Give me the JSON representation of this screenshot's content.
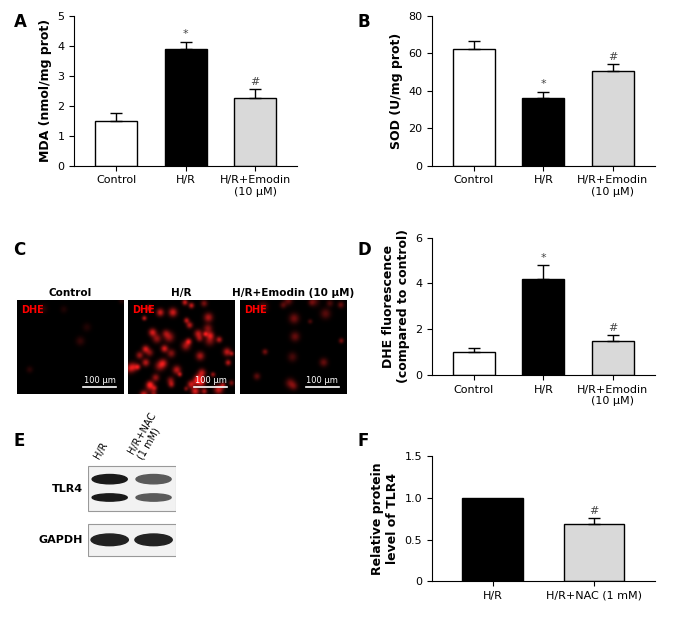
{
  "chart_data": [
    {
      "type": "bar",
      "panel": "A",
      "y_label": "MDA (nmol/mg prot)",
      "categories": [
        "Control",
        "H/R",
        "H/R+Emodin\n(10 μM)"
      ],
      "values": [
        1.48,
        3.88,
        2.26
      ],
      "errors": [
        0.28,
        0.25,
        0.28
      ],
      "colors": [
        "#ffffff",
        "#000000",
        "#d9d9d9"
      ],
      "significance": [
        null,
        "*",
        "#"
      ],
      "ylim": [
        0,
        5
      ],
      "yticks": [
        0,
        1,
        2,
        3,
        4,
        5
      ]
    },
    {
      "type": "bar",
      "panel": "B",
      "y_label": "SOD (U/mg prot)",
      "categories": [
        "Control",
        "H/R",
        "H/R+Emodin\n(10 μM)"
      ],
      "values": [
        62,
        36,
        50.5
      ],
      "errors": [
        4.5,
        3.5,
        3.8
      ],
      "colors": [
        "#ffffff",
        "#000000",
        "#d9d9d9"
      ],
      "significance": [
        null,
        "*",
        "#"
      ],
      "ylim": [
        0,
        80
      ],
      "yticks": [
        0,
        20,
        40,
        60,
        80
      ]
    },
    {
      "type": "bar",
      "panel": "D",
      "y_label": "DHE fluorescence\n(compared to control)",
      "categories": [
        "Control",
        "H/R",
        "H/R+Emodin\n(10 μM)"
      ],
      "values": [
        1.0,
        4.2,
        1.5
      ],
      "errors": [
        0.18,
        0.6,
        0.25
      ],
      "colors": [
        "#ffffff",
        "#000000",
        "#d9d9d9"
      ],
      "significance": [
        null,
        "*",
        "#"
      ],
      "ylim": [
        0,
        6
      ],
      "yticks": [
        0,
        2,
        4,
        6
      ]
    },
    {
      "type": "bar",
      "panel": "F",
      "y_label": "Relative protein\nlevel of TLR4",
      "categories": [
        "H/R",
        "H/R+NAC (1 mM)"
      ],
      "values": [
        1.0,
        0.69
      ],
      "errors": [
        null,
        0.07
      ],
      "colors": [
        "#000000",
        "#d9d9d9"
      ],
      "significance": [
        null,
        "#"
      ],
      "ylim": [
        0,
        1.5
      ],
      "yticks": [
        0,
        0.5,
        {
          "value": 1,
          "label": "1.0"
        },
        1.5
      ]
    }
  ],
  "images": {
    "panel": "C",
    "stain": "DHE",
    "titles": [
      "Control",
      "H/R",
      "H/R+Emodin (10 μM)"
    ],
    "scale_bar": "100 μm"
  },
  "blot": {
    "panel": "E",
    "lanes": [
      "H/R",
      "H/R+NAC\n(1 mM)"
    ],
    "proteins": [
      "TLR4",
      "GAPDH"
    ]
  }
}
